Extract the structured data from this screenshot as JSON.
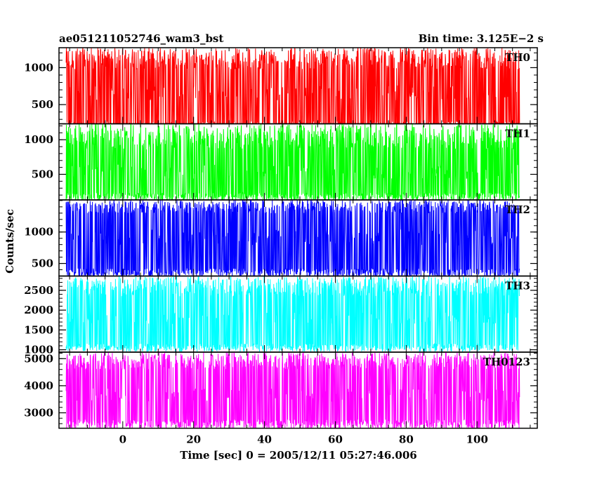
{
  "header": {
    "title": "ae051211052746_wam3_bst",
    "bin_time": "Bin time: 3.125E−2  s"
  },
  "axes": {
    "ylabel": "Counts/sec",
    "xlabel": "Time [sec] 0 = 2005/12/11 05:27:46.006"
  },
  "chart_data": [
    {
      "type": "line",
      "name": "TH0",
      "color": "#ff0000",
      "x_range": [
        -16,
        112
      ],
      "ylim": [
        240,
        1270
      ],
      "y_ticks": [
        500,
        1000
      ],
      "y_minor_step": 100,
      "y_low": [
        160,
        270
      ],
      "y_mid": [
        560,
        760
      ],
      "y_high": [
        980,
        1270
      ]
    },
    {
      "type": "line",
      "name": "TH1",
      "color": "#00ff00",
      "x_range": [
        -16,
        112
      ],
      "ylim": [
        130,
        1230
      ],
      "y_ticks": [
        500,
        1000
      ],
      "y_minor_step": 100,
      "y_low": [
        120,
        230
      ],
      "y_mid": [
        430,
        640
      ],
      "y_high": [
        860,
        1230
      ]
    },
    {
      "type": "line",
      "name": "TH2",
      "color": "#0000ff",
      "x_range": [
        -16,
        112
      ],
      "ylim": [
        300,
        1510
      ],
      "y_ticks": [
        500,
        1000
      ],
      "y_minor_step": 100,
      "y_low": [
        280,
        420
      ],
      "y_mid": [
        780,
        1040
      ],
      "y_high": [
        1300,
        1510
      ]
    },
    {
      "type": "line",
      "name": "TH3",
      "color": "#00ffff",
      "x_range": [
        -16,
        112
      ],
      "ylim": [
        940,
        2860
      ],
      "y_ticks": [
        1000,
        1500,
        2000,
        2500
      ],
      "y_minor_step": 100,
      "y_low": [
        950,
        1150
      ],
      "y_mid": [
        1650,
        1950
      ],
      "y_high": [
        2350,
        2860
      ]
    },
    {
      "type": "line",
      "name": "TH0123",
      "color": "#ff00ff",
      "x_range": [
        -16,
        112
      ],
      "ylim": [
        2430,
        5240
      ],
      "y_ticks": [
        3000,
        4000,
        5000
      ],
      "y_minor_step": 200,
      "y_low": [
        2400,
        2750
      ],
      "y_mid": [
        3400,
        3900
      ],
      "y_high": [
        4600,
        5240
      ]
    }
  ],
  "x_axis": {
    "xlim": [
      -18,
      117
    ],
    "ticks": [
      0,
      20,
      40,
      60,
      80,
      100
    ],
    "minor_step": 5
  }
}
